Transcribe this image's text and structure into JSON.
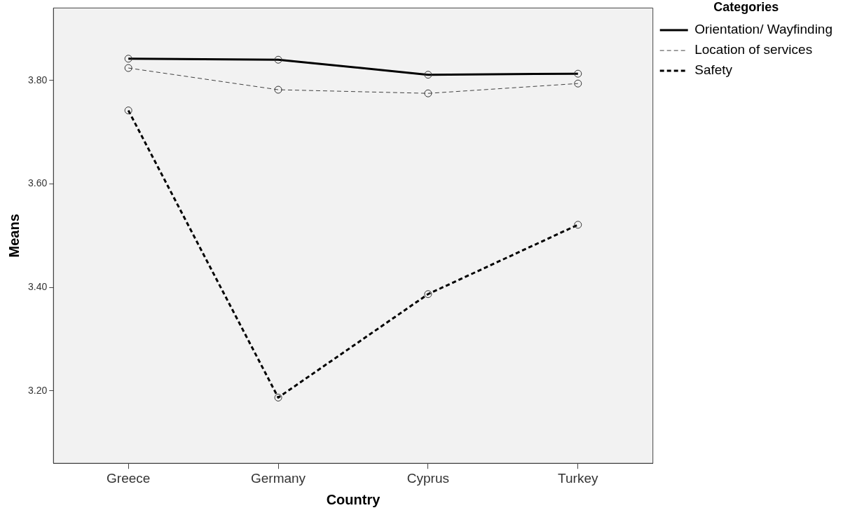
{
  "chart_data": {
    "type": "line",
    "xlabel": "Country",
    "ylabel": "Means",
    "legend_title": "Categories",
    "legend": "top right",
    "grid": false,
    "marker": "circle",
    "categories": [
      "Greece",
      "Germany",
      "Cyprus",
      "Turkey"
    ],
    "ylim": [
      3.06,
      3.94
    ],
    "yticks": [
      {
        "value": 3.2,
        "label": "3.20"
      },
      {
        "value": 3.4,
        "label": "3.40"
      },
      {
        "value": 3.6,
        "label": "3.60"
      },
      {
        "value": 3.8,
        "label": "3.80"
      }
    ],
    "series": [
      {
        "name": "Orientation/ Wayfinding",
        "color": "#000000",
        "line_style": "solid",
        "values": [
          3.842,
          3.84,
          3.811,
          3.813
        ]
      },
      {
        "name": "Location of services",
        "color": "#404040",
        "line_style": "dashed",
        "values": [
          3.824,
          3.782,
          3.775,
          3.794
        ]
      },
      {
        "name": "Safety",
        "color": "#000000",
        "line_style": "dashed",
        "values": [
          3.742,
          3.187,
          3.387,
          3.521
        ]
      }
    ]
  }
}
